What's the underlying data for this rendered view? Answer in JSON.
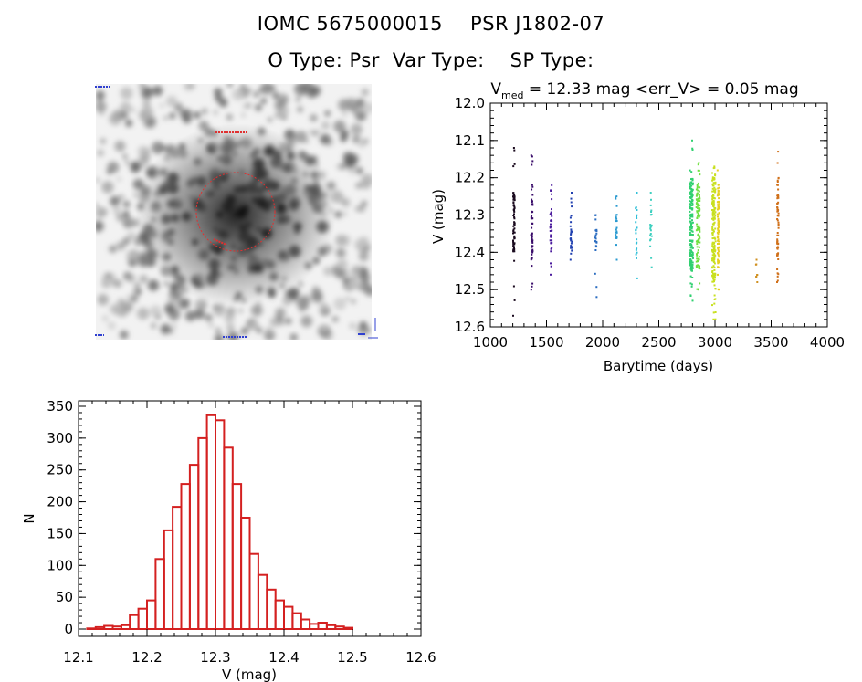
{
  "header": {
    "star_id": "IOMC 5675000015",
    "star_name": "PSR J1802-07",
    "o_type": "O Type: Psr",
    "var_type": "Var Type:",
    "sp_type": "SP Type:"
  },
  "colors": {
    "histogram": "#d42020",
    "aperture": "#e03030"
  },
  "chart_data": [
    {
      "type": "scatter",
      "title_parts": {
        "v": "V",
        "sub": "med",
        "rest": " = 12.33 mag <err_V> = 0.05 mag"
      },
      "xlabel": "Barytime (days)",
      "ylabel": "V (mag)",
      "xlim": [
        1000,
        4000
      ],
      "ylim": [
        12.6,
        12.0
      ],
      "y_inverted": true,
      "x_ticks": [
        1000,
        1500,
        2000,
        2500,
        3000,
        3500,
        4000
      ],
      "y_ticks": [
        "12.0",
        "12.1",
        "12.2",
        "12.3",
        "12.4",
        "12.5",
        "12.6"
      ],
      "groups": [
        {
          "x": 1210,
          "y_min": 12.12,
          "y_max": 12.57,
          "core": [
            12.24,
            12.4
          ],
          "n": 70,
          "color": "#1a0a1e"
        },
        {
          "x": 1370,
          "y_min": 12.14,
          "y_max": 12.5,
          "core": [
            12.25,
            12.42
          ],
          "n": 60,
          "color": "#3a0d6a"
        },
        {
          "x": 1540,
          "y_min": 12.22,
          "y_max": 12.46,
          "core": [
            12.28,
            12.42
          ],
          "n": 35,
          "color": "#4a1a9c"
        },
        {
          "x": 1720,
          "y_min": 12.24,
          "y_max": 12.42,
          "core": [
            12.3,
            12.4
          ],
          "n": 30,
          "color": "#2040b0"
        },
        {
          "x": 1940,
          "y_min": 12.3,
          "y_max": 12.52,
          "core": [
            12.33,
            12.4
          ],
          "n": 22,
          "color": "#2a6cc0"
        },
        {
          "x": 2120,
          "y_min": 12.25,
          "y_max": 12.42,
          "core": [
            12.3,
            12.38
          ],
          "n": 22,
          "color": "#2a9ad0"
        },
        {
          "x": 2300,
          "y_min": 12.24,
          "y_max": 12.47,
          "core": [
            12.28,
            12.42
          ],
          "n": 22,
          "color": "#30c0d8"
        },
        {
          "x": 2430,
          "y_min": 12.24,
          "y_max": 12.44,
          "core": [
            12.28,
            12.4
          ],
          "n": 22,
          "color": "#40d0c0"
        },
        {
          "x": 2790,
          "y_min": 12.1,
          "y_max": 12.53,
          "core": [
            12.2,
            12.45
          ],
          "n": 170,
          "color": "#30d070"
        },
        {
          "x": 2850,
          "y_min": 12.16,
          "y_max": 12.5,
          "core": [
            12.22,
            12.44
          ],
          "n": 120,
          "color": "#70e040"
        },
        {
          "x": 2990,
          "y_min": 12.17,
          "y_max": 12.58,
          "core": [
            12.2,
            12.48
          ],
          "n": 170,
          "color": "#c8e020"
        },
        {
          "x": 3030,
          "y_min": 12.18,
          "y_max": 12.5,
          "core": [
            12.22,
            12.45
          ],
          "n": 80,
          "color": "#e8d020"
        },
        {
          "x": 3370,
          "y_min": 12.42,
          "y_max": 12.48,
          "core": [
            12.43,
            12.47
          ],
          "n": 8,
          "color": "#d09020"
        },
        {
          "x": 3560,
          "y_min": 12.13,
          "y_max": 12.48,
          "core": [
            12.2,
            12.42
          ],
          "n": 60,
          "color": "#d0701a"
        }
      ]
    },
    {
      "type": "bar",
      "xlabel": "V (mag)",
      "ylabel": "N",
      "xlim": [
        12.1,
        12.6
      ],
      "ylim": [
        0,
        350
      ],
      "x_ticks": [
        "12.1",
        "12.2",
        "12.3",
        "12.4",
        "12.5",
        "12.6"
      ],
      "y_ticks": [
        0,
        50,
        100,
        150,
        200,
        250,
        300,
        350
      ],
      "bin_start": 12.1,
      "bin_width": 0.0125,
      "values": [
        0,
        1,
        3,
        5,
        4,
        6,
        22,
        32,
        45,
        110,
        155,
        192,
        228,
        258,
        300,
        336,
        328,
        285,
        228,
        175,
        118,
        85,
        62,
        45,
        35,
        25,
        15,
        8,
        10,
        6,
        4,
        2,
        0,
        0
      ]
    }
  ]
}
